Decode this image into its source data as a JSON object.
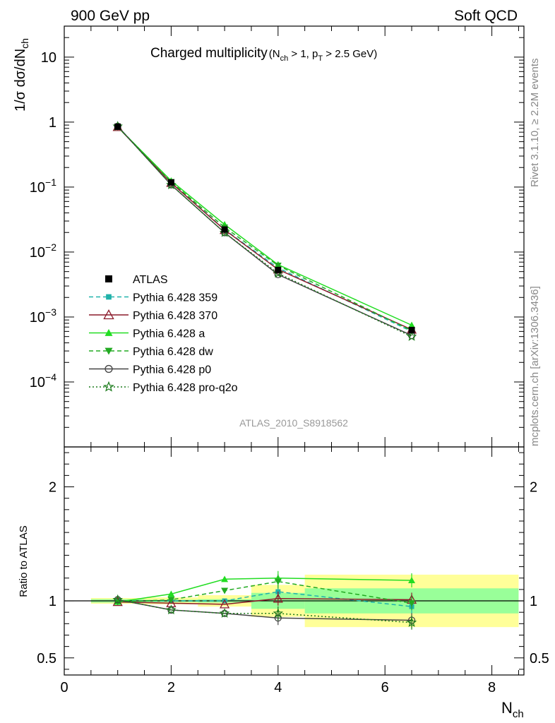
{
  "header": {
    "left": "900 GeV pp",
    "right": "Soft QCD"
  },
  "side_labels": {
    "rivet": "Rivet 3.1.10, ≥ 2.2M events",
    "mcplots": "mcplots.cern.ch [arXiv:1306.3436]"
  },
  "watermark": "ATLAS_2010_S8918562",
  "chart_data": [
    {
      "type": "line",
      "title": "Charged multiplicity(N_ch > 1, p_T > 2.5 GeV)",
      "title_main": "Charged multiplicity",
      "title_sub": "(N_ch > 1, p_T > 2.5 GeV)",
      "xlabel": "N_ch",
      "ylabel": "1/σ dσ/dN_ch",
      "y_scale": "log",
      "xlim": [
        0,
        8.6
      ],
      "ylim": [
        1e-05,
        30
      ],
      "y_tick_labels": [
        "10^-4",
        "10^-3",
        "10^-2",
        "10^-1",
        "1",
        "10"
      ],
      "legend_position": "middle-left",
      "x": [
        1,
        2,
        3,
        4,
        6.5
      ],
      "reference": {
        "name": "ATLAS",
        "values": [
          0.85,
          0.118,
          0.0222,
          0.0053,
          0.00063
        ],
        "color": "#000000"
      },
      "series": [
        {
          "name": "Pythia 6.428 359",
          "values": [
            0.855,
            0.118,
            0.0222,
            0.0057,
            0.0006
          ],
          "color": "#20b2aa",
          "dash": "dashed",
          "marker": "square"
        },
        {
          "name": "Pythia 6.428 370",
          "values": [
            0.84,
            0.116,
            0.0219,
            0.0054,
            0.00064
          ],
          "color": "#8b1a2a",
          "dash": "solid",
          "marker": "triangle-open"
        },
        {
          "name": "Pythia 6.428 a",
          "values": [
            0.84,
            0.125,
            0.0265,
            0.0064,
            0.00075
          ],
          "color": "#22dd22",
          "dash": "solid",
          "marker": "triangle"
        },
        {
          "name": "Pythia 6.428 dw",
          "values": [
            0.84,
            0.12,
            0.024,
            0.0062,
            0.00062
          ],
          "color": "#22aa22",
          "dash": "dashed",
          "marker": "triangle-down"
        },
        {
          "name": "Pythia 6.428 p0",
          "values": [
            0.86,
            0.108,
            0.0199,
            0.0045,
            0.00052
          ],
          "color": "#444444",
          "dash": "solid",
          "marker": "circle-open"
        },
        {
          "name": "Pythia 6.428 pro-q2o",
          "values": [
            0.86,
            0.108,
            0.0199,
            0.0047,
            0.0005
          ],
          "color": "#1a7a1a",
          "dash": "dotted",
          "marker": "star-open"
        }
      ]
    },
    {
      "type": "line",
      "xlabel": "N_ch",
      "ylabel": "Ratio to ATLAS",
      "xlim": [
        0,
        8.6
      ],
      "ylim": [
        0.35,
        2.35
      ],
      "x_tick_labels": [
        "0",
        "2",
        "4",
        "6",
        "8"
      ],
      "y_tick_labels": [
        "0.5",
        "1",
        "2"
      ],
      "x": [
        1,
        2,
        3,
        4,
        6.5
      ],
      "bands": [
        {
          "xmin": 0.5,
          "xmax": 1.5,
          "inner": [
            0.985,
            1.015
          ],
          "outer": [
            0.975,
            1.025
          ]
        },
        {
          "xmin": 1.5,
          "xmax": 2.5,
          "inner": [
            0.99,
            1.01
          ],
          "outer": [
            0.97,
            1.03
          ]
        },
        {
          "xmin": 2.5,
          "xmax": 3.5,
          "inner": [
            0.985,
            1.015
          ],
          "outer": [
            0.95,
            1.05
          ]
        },
        {
          "xmin": 3.5,
          "xmax": 4.5,
          "inner": [
            0.93,
            1.07
          ],
          "outer": [
            0.86,
            1.14
          ]
        },
        {
          "xmin": 4.5,
          "xmax": 8.5,
          "inner": [
            0.89,
            1.11
          ],
          "outer": [
            0.77,
            1.23
          ]
        }
      ],
      "series": [
        {
          "name": "Pythia 6.428 359",
          "values": [
            1.0,
            1.0,
            1.0,
            1.08,
            0.95
          ]
        },
        {
          "name": "Pythia 6.428 370",
          "values": [
            0.99,
            0.98,
            0.97,
            1.02,
            1.01
          ]
        },
        {
          "name": "Pythia 6.428 a",
          "values": [
            0.99,
            1.06,
            1.19,
            1.2,
            1.18
          ]
        },
        {
          "name": "Pythia 6.428 dw",
          "values": [
            0.99,
            1.01,
            1.09,
            1.17,
            0.98
          ]
        },
        {
          "name": "Pythia 6.428 p0",
          "values": [
            1.01,
            0.92,
            0.89,
            0.85,
            0.83
          ]
        },
        {
          "name": "Pythia 6.428 pro-q2o",
          "values": [
            1.01,
            0.92,
            0.89,
            0.89,
            0.81
          ]
        }
      ]
    }
  ]
}
